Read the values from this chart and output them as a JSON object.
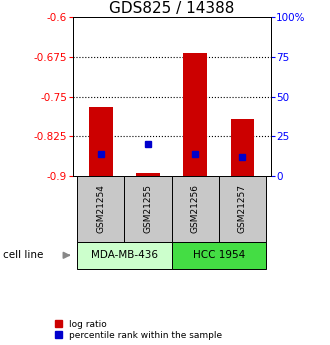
{
  "title": "GDS825 / 14388",
  "samples": [
    "GSM21254",
    "GSM21255",
    "GSM21256",
    "GSM21257"
  ],
  "log_ratios": [
    -0.77,
    -0.895,
    -0.668,
    -0.793
  ],
  "percentile_ranks": [
    14,
    20,
    14,
    12
  ],
  "bar_bottom": -0.9,
  "ylim_left": [
    -0.9,
    -0.6
  ],
  "ylim_right": [
    0,
    100
  ],
  "yticks_left": [
    -0.9,
    -0.825,
    -0.75,
    -0.675,
    -0.6
  ],
  "ytick_labels_left": [
    "-0.9",
    "-0.825",
    "-0.75",
    "-0.675",
    "-0.6"
  ],
  "yticks_right": [
    0,
    25,
    50,
    75,
    100
  ],
  "ytick_labels_right": [
    "0",
    "25",
    "50",
    "75",
    "100%"
  ],
  "hlines": [
    -0.825,
    -0.75,
    -0.675
  ],
  "cell_lines": [
    {
      "name": "MDA-MB-436",
      "samples": [
        0,
        1
      ],
      "color": "#ccffcc"
    },
    {
      "name": "HCC 1954",
      "samples": [
        2,
        3
      ],
      "color": "#44dd44"
    }
  ],
  "bar_color": "#cc0000",
  "blue_color": "#0000cc",
  "bar_width": 0.5,
  "sample_bg_color": "#c8c8c8",
  "legend_red_label": "log ratio",
  "legend_blue_label": "percentile rank within the sample",
  "cell_line_label": "cell line",
  "title_fontsize": 11,
  "tick_fontsize": 7.5,
  "sample_fontsize": 6.5,
  "cell_fontsize": 7.5,
  "legend_fontsize": 6.5
}
